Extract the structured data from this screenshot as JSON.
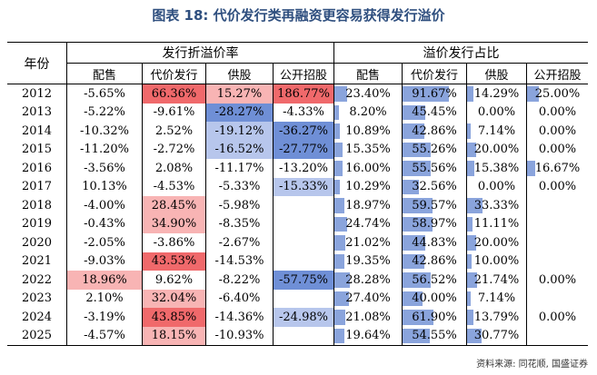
{
  "title": "图表 18: 代价发行类再融资更容易获得发行溢价",
  "table": {
    "year_header": "年份",
    "group_headers": [
      "发行折溢价率",
      "溢价发行占比"
    ],
    "sub_headers": [
      "配售",
      "代价发行",
      "供股",
      "公开招股",
      "配售",
      "代价发行",
      "供股",
      "公开招股"
    ],
    "rows": [
      {
        "year": "2012",
        "vals": [
          "-5.65%",
          "66.36%",
          "15.27%",
          "186.77%",
          "23.40%",
          "91.67%",
          "14.29%",
          "25.00%"
        ]
      },
      {
        "year": "2013",
        "vals": [
          "-5.22%",
          "-9.61%",
          "-28.27%",
          "-4.33%",
          "8.20%",
          "45.45%",
          "0.00%",
          "0.00%"
        ]
      },
      {
        "year": "2014",
        "vals": [
          "-10.32%",
          "2.52%",
          "-19.12%",
          "-36.27%",
          "10.89%",
          "42.86%",
          "7.14%",
          "0.00%"
        ]
      },
      {
        "year": "2015",
        "vals": [
          "-11.20%",
          "-2.72%",
          "-16.52%",
          "-27.77%",
          "15.35%",
          "55.26%",
          "20.00%",
          "0.00%"
        ]
      },
      {
        "year": "2016",
        "vals": [
          "-3.56%",
          "2.08%",
          "-11.17%",
          "-13.20%",
          "16.00%",
          "55.56%",
          "15.38%",
          "16.67%"
        ]
      },
      {
        "year": "2017",
        "vals": [
          "10.13%",
          "-4.53%",
          "-5.33%",
          "-15.33%",
          "10.29%",
          "32.56%",
          "0.00%",
          "0.00%"
        ]
      },
      {
        "year": "2018",
        "vals": [
          "-4.00%",
          "28.45%",
          "-5.98%",
          "",
          "18.97%",
          "59.57%",
          "33.33%",
          ""
        ]
      },
      {
        "year": "2019",
        "vals": [
          "-0.43%",
          "34.90%",
          "-8.35%",
          "",
          "24.74%",
          "58.97%",
          "11.11%",
          ""
        ]
      },
      {
        "year": "2020",
        "vals": [
          "-2.05%",
          "-3.86%",
          "-2.67%",
          "",
          "21.02%",
          "44.83%",
          "20.00%",
          ""
        ]
      },
      {
        "year": "2021",
        "vals": [
          "-9.03%",
          "43.53%",
          "-14.53%",
          "",
          "19.35%",
          "42.86%",
          "10.00%",
          ""
        ]
      },
      {
        "year": "2022",
        "vals": [
          "18.96%",
          "9.62%",
          "-8.22%",
          "-57.75%",
          "28.28%",
          "56.52%",
          "21.74%",
          "0.00%"
        ]
      },
      {
        "year": "2023",
        "vals": [
          "2.10%",
          "32.04%",
          "-6.40%",
          "",
          "27.40%",
          "40.00%",
          "7.14%",
          ""
        ]
      },
      {
        "year": "2024",
        "vals": [
          "-3.19%",
          "43.85%",
          "-14.36%",
          "-24.98%",
          "21.08%",
          "61.90%",
          "13.79%",
          "0.00%"
        ]
      },
      {
        "year": "2025",
        "vals": [
          "-4.57%",
          "18.15%",
          "-10.93%",
          "",
          "19.64%",
          "54.55%",
          "30.77%",
          ""
        ]
      }
    ]
  },
  "source": "资料来源: 同花顺, 国盛证券",
  "colors": {
    "title": "#2f4f7f",
    "positive_strong": "#f0696b",
    "positive_light": "#f8b4b4",
    "negative_strong": "#6f8fd6",
    "negative_light": "#b7c6ec",
    "data_bar": "#8aa4dc"
  }
}
